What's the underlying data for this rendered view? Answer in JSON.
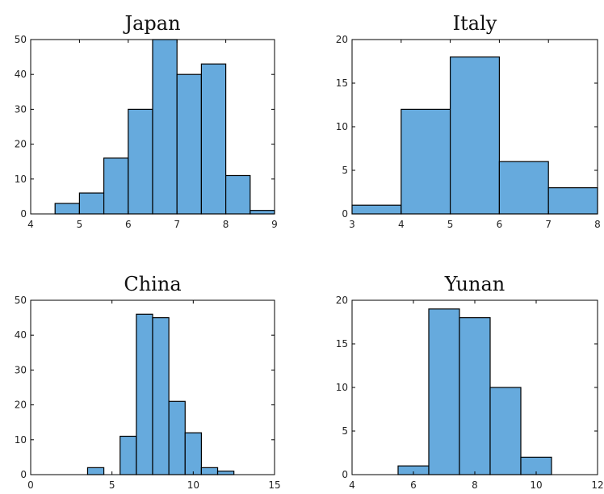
{
  "chart_data": [
    {
      "type": "histogram",
      "title": "Japan",
      "xlim": [
        4,
        9
      ],
      "ylim": [
        0,
        50
      ],
      "xticks": [
        4,
        5,
        6,
        7,
        8,
        9
      ],
      "yticks": [
        0,
        10,
        20,
        30,
        40,
        50
      ],
      "bins": [
        {
          "x0": 4.5,
          "x1": 5.0,
          "count": 3
        },
        {
          "x0": 5.0,
          "x1": 5.5,
          "count": 6
        },
        {
          "x0": 5.5,
          "x1": 6.0,
          "count": 16
        },
        {
          "x0": 6.0,
          "x1": 6.5,
          "count": 30
        },
        {
          "x0": 6.5,
          "x1": 7.0,
          "count": 50
        },
        {
          "x0": 7.0,
          "x1": 7.5,
          "count": 40
        },
        {
          "x0": 7.5,
          "x1": 8.0,
          "count": 43
        },
        {
          "x0": 8.0,
          "x1": 8.5,
          "count": 11
        },
        {
          "x0": 8.5,
          "x1": 9.0,
          "count": 1
        }
      ],
      "bar_color": "#66AADD",
      "edge_color": "#000000"
    },
    {
      "type": "histogram",
      "title": "Italy",
      "xlim": [
        3,
        8
      ],
      "ylim": [
        0,
        20
      ],
      "xticks": [
        3,
        4,
        5,
        6,
        7,
        8
      ],
      "yticks": [
        0,
        5,
        10,
        15,
        20
      ],
      "bins": [
        {
          "x0": 3,
          "x1": 4,
          "count": 1
        },
        {
          "x0": 4,
          "x1": 5,
          "count": 12
        },
        {
          "x0": 5,
          "x1": 6,
          "count": 18
        },
        {
          "x0": 6,
          "x1": 7,
          "count": 6
        },
        {
          "x0": 7,
          "x1": 8,
          "count": 3
        }
      ],
      "bar_color": "#66AADD",
      "edge_color": "#000000"
    },
    {
      "type": "histogram",
      "title": "China",
      "xlim": [
        0,
        15
      ],
      "ylim": [
        0,
        50
      ],
      "xticks": [
        0,
        5,
        10,
        15
      ],
      "yticks": [
        0,
        10,
        20,
        30,
        40,
        50
      ],
      "bins": [
        {
          "x0": 3.5,
          "x1": 4.5,
          "count": 2
        },
        {
          "x0": 4.5,
          "x1": 5.5,
          "count": 0
        },
        {
          "x0": 5.5,
          "x1": 6.5,
          "count": 11
        },
        {
          "x0": 6.5,
          "x1": 7.5,
          "count": 46
        },
        {
          "x0": 7.5,
          "x1": 8.5,
          "count": 45
        },
        {
          "x0": 8.5,
          "x1": 9.5,
          "count": 21
        },
        {
          "x0": 9.5,
          "x1": 10.5,
          "count": 12
        },
        {
          "x0": 10.5,
          "x1": 11.5,
          "count": 2
        },
        {
          "x0": 11.5,
          "x1": 12.5,
          "count": 1
        }
      ],
      "bar_color": "#66AADD",
      "edge_color": "#000000"
    },
    {
      "type": "histogram",
      "title": "Yunan",
      "xlim": [
        4,
        12
      ],
      "ylim": [
        0,
        20
      ],
      "xticks": [
        4,
        6,
        8,
        10,
        12
      ],
      "yticks": [
        0,
        5,
        10,
        15,
        20
      ],
      "bins": [
        {
          "x0": 5.5,
          "x1": 6.5,
          "count": 1
        },
        {
          "x0": 6.5,
          "x1": 7.5,
          "count": 19
        },
        {
          "x0": 7.5,
          "x1": 8.5,
          "count": 18
        },
        {
          "x0": 8.5,
          "x1": 9.5,
          "count": 10
        },
        {
          "x0": 9.5,
          "x1": 10.5,
          "count": 2
        }
      ],
      "bar_color": "#66AADD",
      "edge_color": "#000000"
    }
  ]
}
